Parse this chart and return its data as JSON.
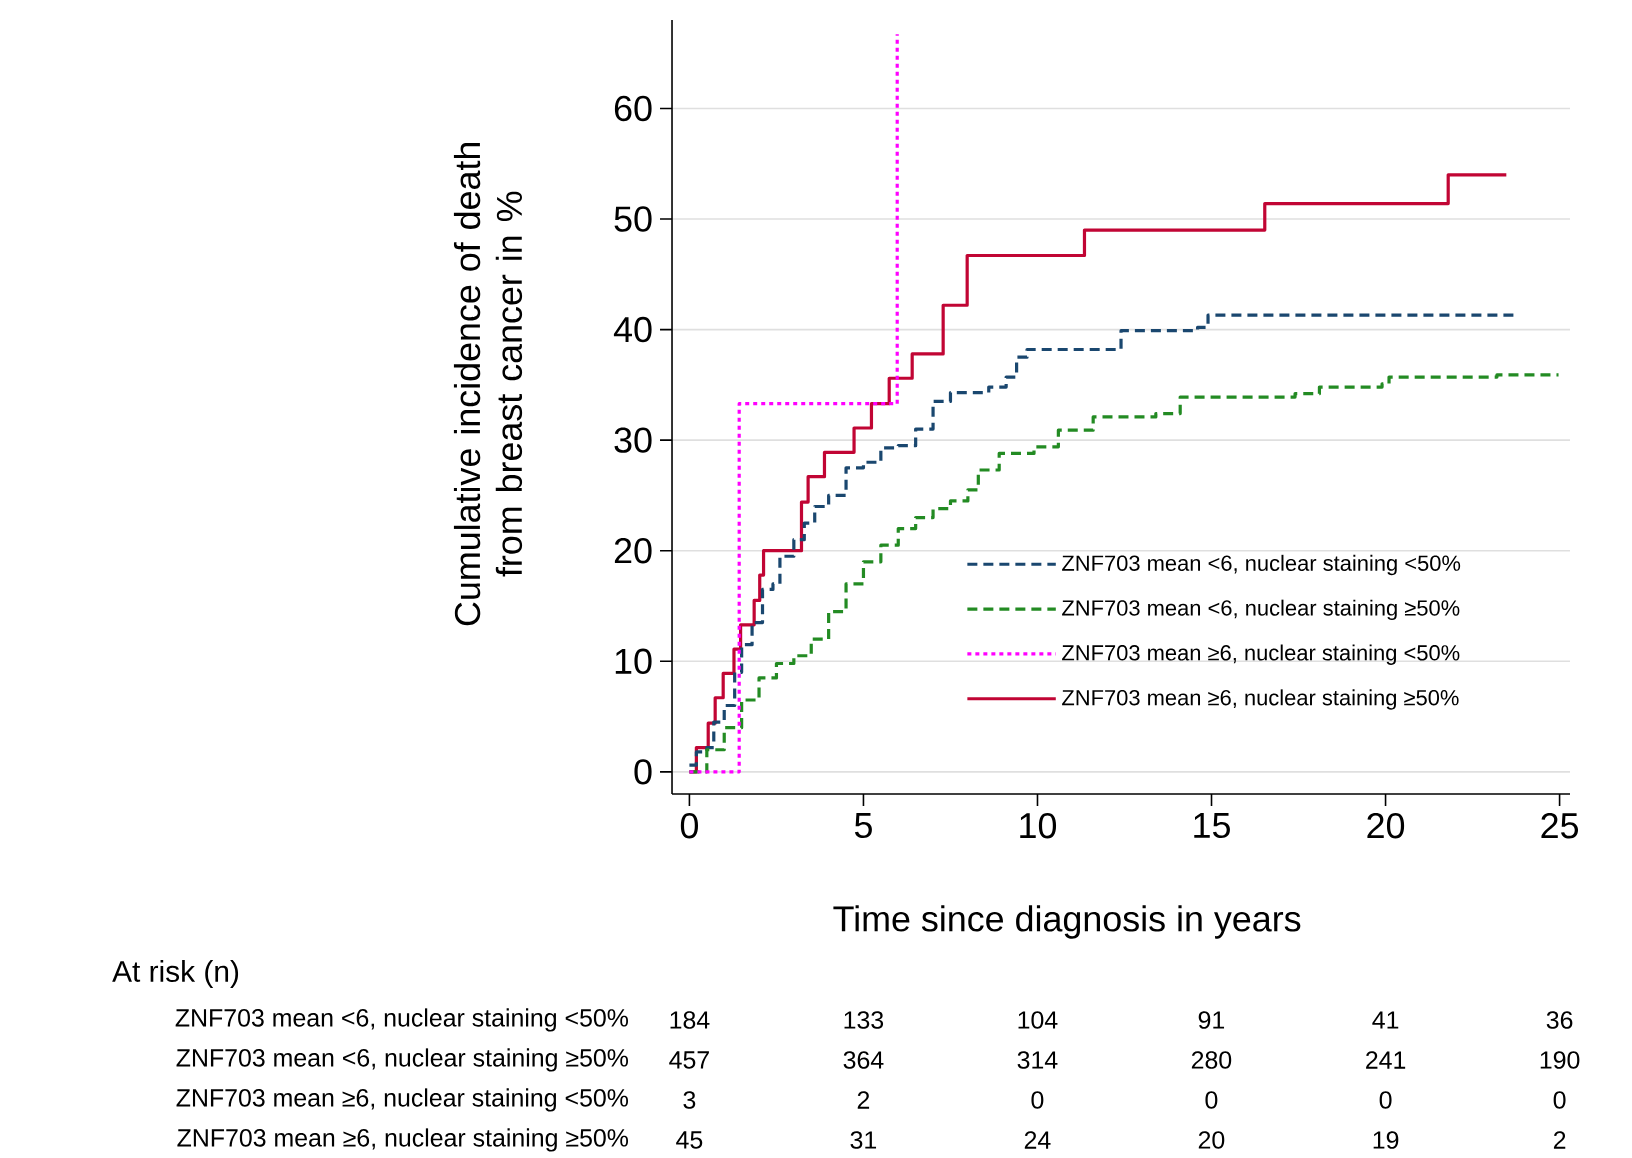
{
  "chart_data": {
    "type": "step",
    "xlabel": "Time since diagnosis in years",
    "ylabel": "Cumulative incidence of death from breast cancer in %",
    "xlim": [
      -0.5,
      25.3
    ],
    "ylim": [
      -2,
      68
    ],
    "xticks": [
      0,
      5,
      10,
      15,
      20,
      25
    ],
    "yticks": [
      0,
      10,
      20,
      30,
      40,
      50,
      60
    ],
    "grid": "y",
    "legend": "right",
    "series": [
      {
        "name": "ZNF703 mean <6, nuclear staining <50%",
        "color": "#1a476f",
        "line_style": "dashed",
        "x": [
          0,
          0.2,
          0.5,
          0.7,
          1.0,
          1.3,
          1.5,
          1.8,
          2.1,
          2.4,
          2.6,
          3.0,
          3.3,
          3.6,
          4.0,
          4.5,
          5.0,
          5.5,
          6.0,
          6.5,
          7.0,
          7.5,
          8.6,
          9.1,
          9.4,
          9.7,
          11.95,
          12.4,
          14.6,
          14.9,
          23.8
        ],
        "values": [
          0.6,
          1.8,
          2.2,
          4.5,
          6,
          9,
          11.5,
          13.5,
          16.5,
          17,
          19.5,
          21,
          22.5,
          24,
          25,
          27.5,
          28,
          29.3,
          29.5,
          31,
          33.5,
          34.3,
          34.8,
          35.7,
          37.5,
          38.2,
          38.2,
          39.9,
          40.2,
          41.3,
          41.3
        ]
      },
      {
        "name": "ZNF703 mean <6, nuclear staining ≥50%",
        "color": "#238b23",
        "line_style": "dashed",
        "x": [
          0,
          0.5,
          1,
          1.5,
          2,
          2.5,
          3,
          3.5,
          4,
          4.5,
          5,
          5.5,
          6,
          6.5,
          7,
          7.5,
          8,
          8.3,
          8.9,
          9.9,
          10.6,
          11.6,
          13.4,
          14.1,
          17.4,
          18.1,
          19.9,
          20.1,
          23.2,
          24.97
        ],
        "values": [
          0,
          2,
          4,
          6.5,
          8.5,
          9.8,
          10.5,
          12,
          14.5,
          17,
          19,
          20.5,
          22,
          23,
          23.8,
          24.5,
          25.5,
          27.3,
          28.8,
          29.4,
          30.9,
          32.1,
          32.4,
          33.9,
          34.2,
          34.8,
          35.1,
          35.7,
          35.9,
          35.9
        ]
      },
      {
        "name": "ZNF703 mean ≥6, nuclear staining <50%",
        "color": "#ff00ff",
        "line_style": "dotted",
        "x": [
          0,
          1.43,
          5.97
        ],
        "values": [
          0,
          33.3,
          66.7
        ]
      },
      {
        "name": "ZNF703 mean ≥6, nuclear staining ≥50%",
        "color": "#c10534",
        "line_style": "solid",
        "x": [
          0,
          0.2,
          0.54,
          0.74,
          0.97,
          1.28,
          1.47,
          1.86,
          2.02,
          2.13,
          3.22,
          3.41,
          3.88,
          4.73,
          5.23,
          5.74,
          6.4,
          7.29,
          7.98,
          11.35,
          16.53,
          21.8,
          23.47
        ],
        "values": [
          0,
          2.2,
          4.4,
          6.7,
          8.9,
          11.1,
          13.3,
          15.5,
          17.8,
          20,
          24.4,
          26.7,
          28.9,
          31.1,
          33.3,
          35.6,
          37.8,
          42.2,
          46.7,
          49.0,
          51.4,
          54.0,
          54.0
        ]
      }
    ],
    "annotations": [
      "At risk (n)",
      "ZNF703 mean <6, nuclear staining <50%",
      "184",
      "133",
      "104",
      "91",
      "41",
      "36",
      "ZNF703 mean <6, nuclear staining ≥50%",
      "457",
      "364",
      "314",
      "280",
      "241",
      "190",
      "ZNF703 mean ≥6, nuclear staining <50%",
      "3",
      "2",
      "0",
      "0",
      "0",
      "0",
      "ZNF703 mean ≥6, nuclear staining ≥50%",
      "45",
      "31",
      "24",
      "20",
      "19",
      "2"
    ]
  }
}
